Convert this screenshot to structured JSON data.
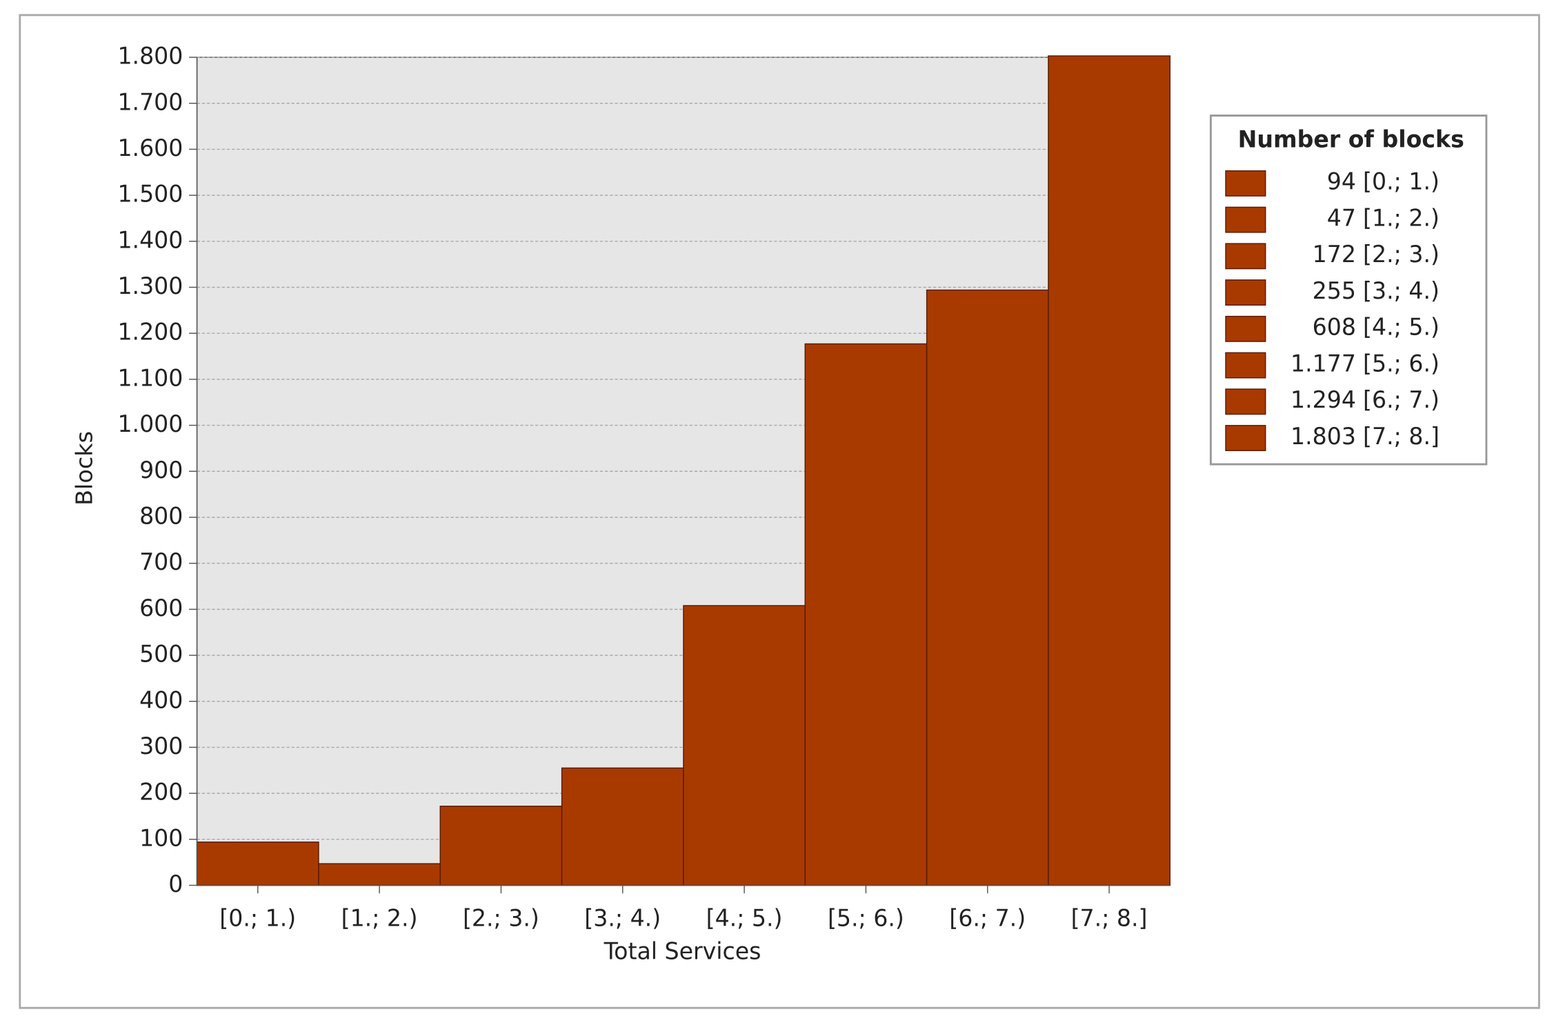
{
  "chart_data": {
    "type": "bar",
    "x_label": "Total Services",
    "y_label": "Blocks",
    "legend_title": "Number of blocks",
    "categories": [
      "[0.; 1.)",
      "[1.; 2.)",
      "[2.; 3.)",
      "[3.; 4.)",
      "[4.; 5.)",
      "[5.; 6.)",
      "[6.; 7.)",
      "[7.; 8.]"
    ],
    "values": [
      94,
      47,
      172,
      255,
      608,
      1177,
      1294,
      1803
    ],
    "value_labels": [
      "94",
      "47",
      "172",
      "255",
      "608",
      "1.177",
      "1.294",
      "1.803"
    ],
    "color": "#a83a00",
    "ylim": [
      0,
      1800
    ],
    "yticks": [
      0,
      100,
      200,
      300,
      400,
      500,
      600,
      700,
      800,
      900,
      {
        "value": 1000,
        "label": "1.000"
      },
      {
        "value": 1100,
        "label": "1.100"
      },
      {
        "value": 1200,
        "label": "1.200"
      },
      {
        "value": 1300,
        "label": "1.300"
      },
      {
        "value": 1400,
        "label": "1.400"
      },
      {
        "value": 1500,
        "label": "1.500"
      },
      {
        "value": 1600,
        "label": "1.600"
      },
      {
        "value": 1700,
        "label": "1.700"
      },
      {
        "value": 1800,
        "label": "1.800"
      }
    ],
    "grid": true
  }
}
